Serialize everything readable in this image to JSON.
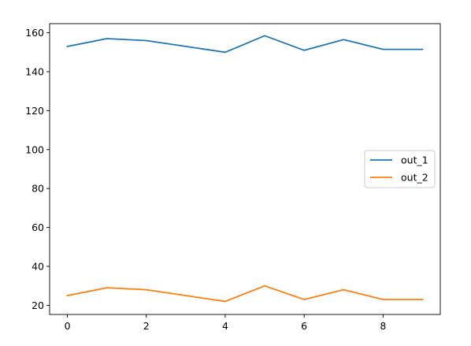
{
  "chart_data": {
    "type": "line",
    "title": "",
    "xlabel": "",
    "ylabel": "",
    "x": [
      0,
      1,
      2,
      3,
      4,
      5,
      6,
      7,
      8,
      9
    ],
    "series": [
      {
        "name": "out_1",
        "color": "#1f77b4",
        "values": [
          153,
          157,
          156,
          153,
          150,
          158.5,
          151,
          156.5,
          151.5,
          151.5
        ]
      },
      {
        "name": "out_2",
        "color": "#ff7f0e",
        "values": [
          25,
          29,
          28,
          25,
          22,
          30,
          23,
          28,
          23,
          23
        ]
      }
    ],
    "xlim": [
      -0.45,
      9.45
    ],
    "ylim": [
      15.3,
      164.7
    ],
    "xticks": [
      0,
      2,
      4,
      6,
      8
    ],
    "yticks": [
      20,
      40,
      60,
      80,
      100,
      120,
      140,
      160
    ],
    "grid": false,
    "legend_position": "center-right"
  }
}
